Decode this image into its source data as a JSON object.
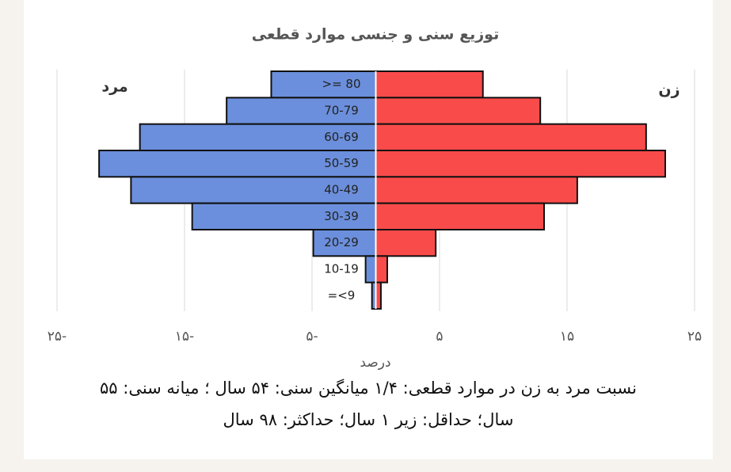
{
  "chart_data": {
    "type": "pyramid",
    "title": "توزیع سنی و جنسی موارد قطعی",
    "x_label": "درصد",
    "categories": [
      ">= 80",
      "70-79",
      "60-69",
      "50-59",
      "40-49",
      "30-39",
      "20-29",
      "10-19",
      "=<9"
    ],
    "series": [
      {
        "name": "مرد",
        "color": "#6b8fdc",
        "values": [
          -8.2,
          -11.7,
          -18.5,
          -21.7,
          -19.2,
          -14.4,
          -4.9,
          -0.8,
          -0.3
        ]
      },
      {
        "name": "زن",
        "color": "#fa4b4b",
        "values": [
          8.4,
          12.9,
          21.2,
          22.7,
          15.8,
          13.2,
          4.7,
          0.9,
          0.4
        ]
      }
    ],
    "xlim": [
      -25,
      25
    ],
    "xticks": [
      {
        "value": -25,
        "label": "۲۵-"
      },
      {
        "value": -15,
        "label": "۱۵-"
      },
      {
        "value": -5,
        "label": "۵-"
      },
      {
        "value": 5,
        "label": "۵"
      },
      {
        "value": 15,
        "label": "۱۵"
      },
      {
        "value": 25,
        "label": "۲۵"
      }
    ],
    "grid": true
  },
  "caption": {
    "lines": [
      "نسبت مرد به زن در موارد قطعی: ۱/۴  میانگین سنی: ۵۴ سال ؛ میانه سنی: ۵۵",
      "سال؛ حداقل: زیر ۱ سال؛ حداکثر: ۹۸ سال"
    ]
  }
}
